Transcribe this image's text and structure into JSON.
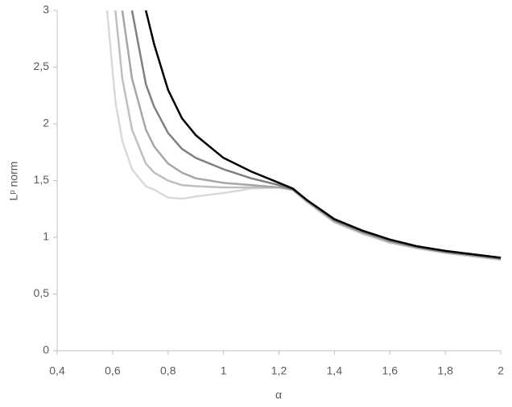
{
  "chart_data": {
    "type": "line",
    "x_label": "α",
    "y_label": "Lᵖ norm",
    "x": [
      0.58,
      0.61,
      0.635,
      0.67,
      0.72,
      0.75,
      0.8,
      0.85,
      0.9,
      1.0,
      1.1,
      1.2,
      1.25,
      1.3,
      1.4,
      1.5,
      1.6,
      1.7,
      1.8,
      1.9,
      2.0
    ],
    "series": [
      {
        "color": "#d9d9d9",
        "values": [
          3.0,
          2.2,
          1.85,
          1.6,
          1.45,
          1.42,
          1.35,
          1.34,
          1.36,
          1.39,
          1.43,
          1.44,
          1.42,
          1.31,
          1.13,
          1.03,
          0.95,
          0.9,
          0.86,
          0.83,
          0.8
        ]
      },
      {
        "color": "#bfbfbf",
        "values": [
          null,
          3.0,
          2.4,
          1.95,
          1.65,
          1.57,
          1.5,
          1.46,
          1.45,
          1.44,
          1.44,
          1.44,
          1.42,
          1.32,
          1.14,
          1.04,
          0.96,
          0.91,
          0.87,
          0.84,
          0.81
        ]
      },
      {
        "color": "#a6a6a6",
        "values": [
          null,
          null,
          3.0,
          2.4,
          1.95,
          1.8,
          1.65,
          1.57,
          1.52,
          1.48,
          1.46,
          1.44,
          1.42,
          1.32,
          1.14,
          1.04,
          0.96,
          0.91,
          0.87,
          0.84,
          0.81
        ]
      },
      {
        "color": "#808080",
        "values": [
          null,
          null,
          null,
          3.0,
          2.35,
          2.15,
          1.92,
          1.78,
          1.7,
          1.6,
          1.52,
          1.46,
          1.42,
          1.33,
          1.15,
          1.05,
          0.97,
          0.91,
          0.87,
          0.84,
          0.81
        ]
      },
      {
        "color": "#000000",
        "values": [
          null,
          null,
          null,
          null,
          3.0,
          2.7,
          2.3,
          2.05,
          1.9,
          1.7,
          1.58,
          1.48,
          1.43,
          1.33,
          1.16,
          1.06,
          0.98,
          0.92,
          0.88,
          0.85,
          0.82
        ]
      }
    ],
    "xlim": [
      0.4,
      2
    ],
    "xticks": [
      {
        "value": 0.4,
        "label": "0,4"
      },
      {
        "value": 0.6,
        "label": "0,6"
      },
      {
        "value": 0.8,
        "label": "0,8"
      },
      1,
      {
        "value": 1.2,
        "label": "1,2"
      },
      {
        "value": 1.4,
        "label": "1,4"
      },
      {
        "value": 1.6,
        "label": "1,6"
      },
      {
        "value": 1.8,
        "label": "1,8"
      },
      2
    ],
    "ylim": [
      0,
      3
    ],
    "yticks": [
      0,
      {
        "value": 0.5,
        "label": "0,5"
      },
      1,
      {
        "value": 1.5,
        "label": "1,5"
      },
      2,
      {
        "value": 2.5,
        "label": "2,5"
      },
      3
    ],
    "grid": false
  }
}
